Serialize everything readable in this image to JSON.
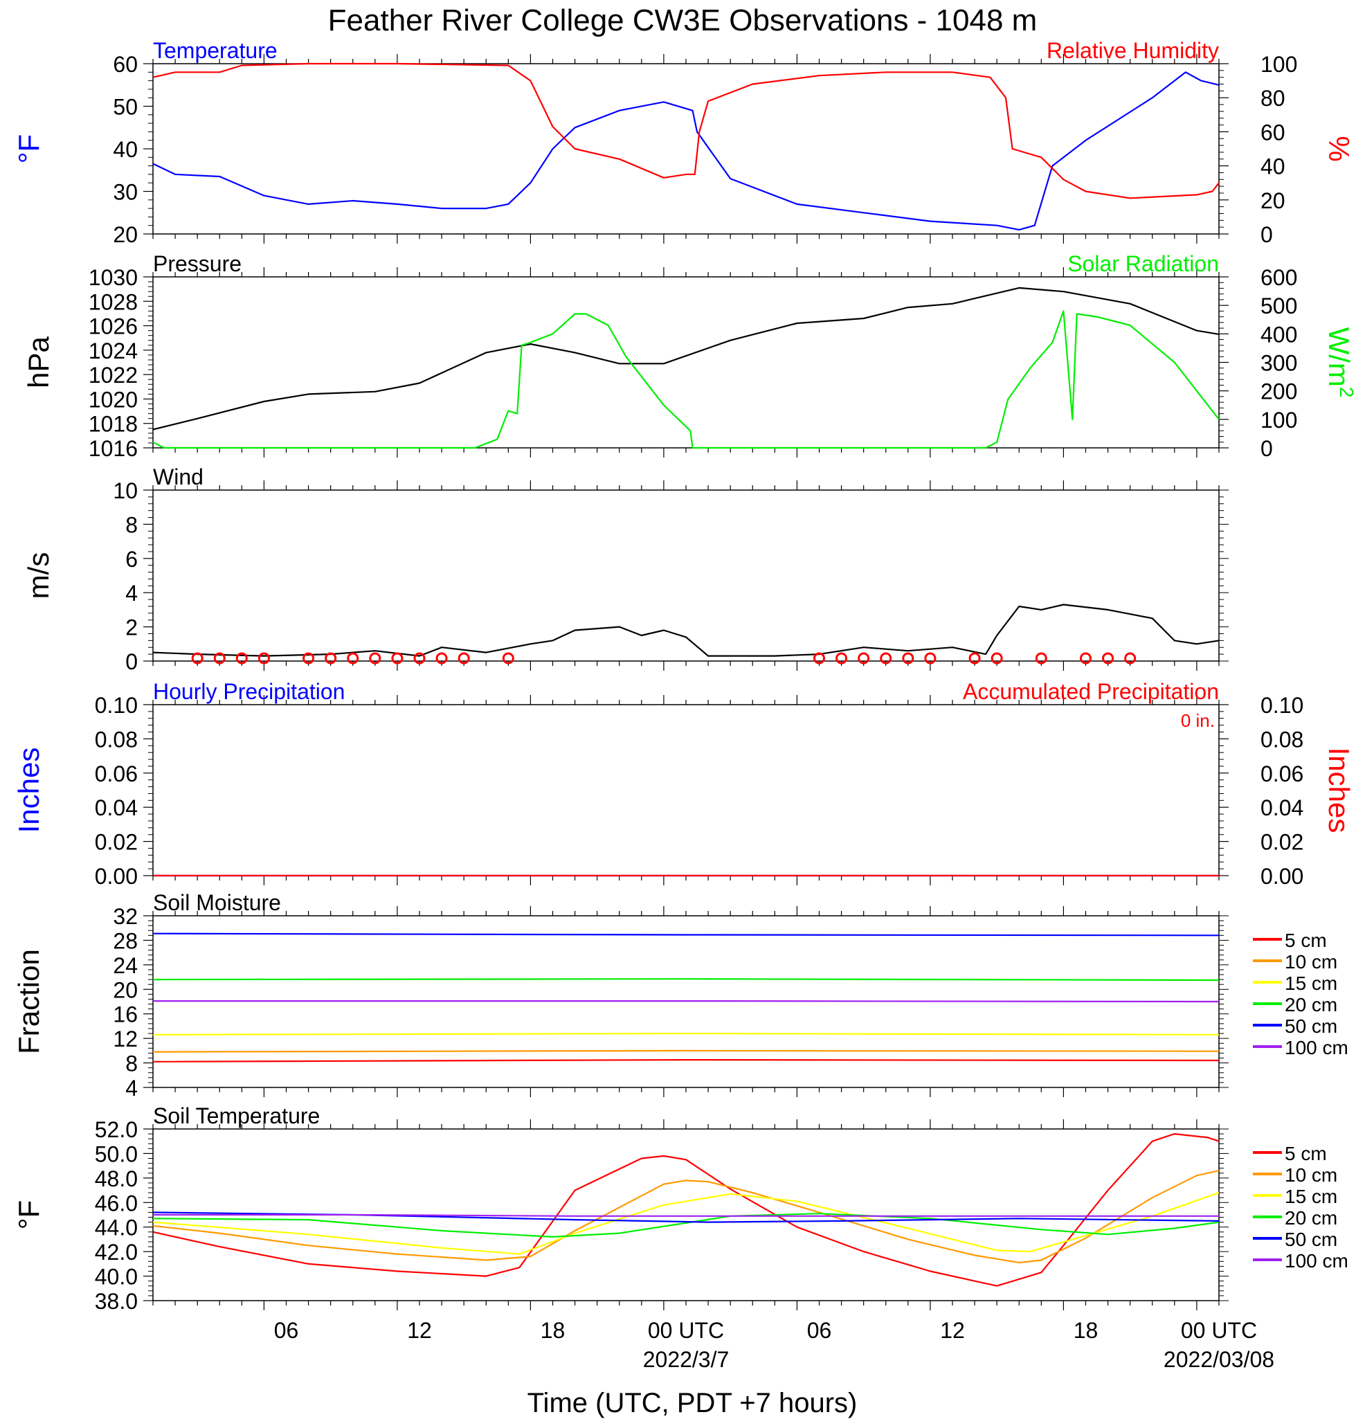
{
  "page": {
    "title": "Feather River College CW3E Observations - 1048 m",
    "xlabel": "Time (UTC, PDT +7 hours)",
    "time_ticks": [
      "06",
      "12",
      "18",
      "00 UTC",
      "06",
      "12",
      "18",
      "00 UTC"
    ],
    "date_labels": [
      "2022/3/7",
      "2022/03/08"
    ],
    "colors": {
      "blue": "#0000ff",
      "red": "#ff0000",
      "green": "#00ee00",
      "black": "#000000",
      "orange": "#ff9900",
      "yellow": "#ffff00",
      "purple": "#a020f0"
    }
  },
  "chart_data": [
    {
      "type": "line",
      "title": "Temperature / Relative Humidity",
      "left_label": "Temperature",
      "right_label": "Relative Humidity",
      "ylabel_left": "°F",
      "ylabel_right": "%",
      "ylim_left": [
        20,
        60
      ],
      "ylim_right": [
        0,
        100
      ],
      "yticks_left": [
        "20",
        "30",
        "40",
        "50",
        "60"
      ],
      "yticks_right": [
        "0",
        "20",
        "40",
        "60",
        "80",
        "100"
      ],
      "x_hours_range": [
        1,
        49
      ],
      "series": [
        {
          "name": "Temperature",
          "color": "#0000ff",
          "axis": "left",
          "x": [
            1,
            2,
            4,
            6,
            8,
            10,
            12,
            14,
            16,
            17,
            18,
            19,
            20,
            22,
            24,
            25.3,
            25.5,
            27,
            30,
            33,
            36,
            39,
            40,
            40.7,
            41.5,
            43,
            46,
            47.5,
            48.2,
            49
          ],
          "y": [
            36.5,
            34,
            33.5,
            29,
            27,
            27.8,
            27,
            26,
            26,
            27,
            32,
            40,
            45,
            49,
            51,
            49,
            44,
            33,
            27,
            25,
            23,
            22,
            21,
            22,
            36,
            42,
            52,
            58,
            56,
            55
          ]
        },
        {
          "name": "Relative Humidity",
          "color": "#ff0000",
          "axis": "right",
          "x": [
            1,
            2,
            4,
            5,
            8,
            12,
            17,
            18,
            19,
            20,
            22,
            24,
            25,
            25.4,
            25.6,
            26,
            28,
            31,
            34,
            37,
            38.7,
            39.4,
            39.7,
            41,
            42,
            43,
            45,
            48,
            48.7,
            49
          ],
          "y": [
            92,
            95,
            95,
            99,
            100,
            100,
            99,
            90,
            63,
            50,
            44,
            33,
            35,
            35,
            60,
            78,
            88,
            93,
            95,
            95,
            92,
            80,
            50,
            45,
            32,
            25,
            21,
            23,
            25,
            30
          ]
        }
      ]
    },
    {
      "type": "line",
      "title": "Pressure / Solar Radiation",
      "left_label": "Pressure",
      "right_label": "Solar Radiation",
      "ylabel_left": "hPa",
      "ylabel_right": "W/m",
      "ylabel_right_sup": "2",
      "ylim_left": [
        1016,
        1030
      ],
      "ylim_right": [
        0,
        600
      ],
      "yticks_left": [
        "1016",
        "1018",
        "1020",
        "1022",
        "1024",
        "1026",
        "1028",
        "1030"
      ],
      "yticks_right": [
        "0",
        "100",
        "200",
        "300",
        "400",
        "500",
        "600"
      ],
      "series": [
        {
          "name": "Pressure",
          "color": "#000000",
          "axis": "left",
          "x": [
            1,
            3,
            6,
            8,
            11,
            13,
            16,
            18,
            20,
            22,
            24,
            27,
            30,
            33,
            35,
            37,
            40,
            42,
            45,
            48,
            49
          ],
          "y": [
            1017.5,
            1018.4,
            1019.8,
            1020.4,
            1020.6,
            1021.3,
            1023.8,
            1024.5,
            1023.8,
            1022.9,
            1022.9,
            1024.8,
            1026.2,
            1026.6,
            1027.5,
            1027.8,
            1029.1,
            1028.8,
            1027.8,
            1025.6,
            1025.3
          ]
        },
        {
          "name": "Solar Radiation",
          "color": "#00ee00",
          "axis": "right",
          "x": [
            1,
            1.5,
            15.5,
            16.5,
            17,
            17.4,
            17.6,
            18,
            19,
            20,
            20.5,
            21.5,
            22.3,
            24,
            25.2,
            25.3,
            38.5,
            39,
            39.5,
            40.5,
            41.5,
            42,
            42.4,
            42.6,
            43.5,
            45,
            47,
            48.5,
            49
          ],
          "y": [
            20,
            0,
            0,
            30,
            130,
            120,
            360,
            370,
            400,
            470,
            470,
            430,
            320,
            150,
            60,
            0,
            0,
            20,
            170,
            280,
            370,
            480,
            100,
            470,
            460,
            430,
            300,
            150,
            100
          ]
        }
      ]
    },
    {
      "type": "line",
      "title": "Wind",
      "left_label": "Wind",
      "ylabel_left": "m/s",
      "ylim_left": [
        0,
        10
      ],
      "yticks_left": [
        "0",
        "2",
        "4",
        "6",
        "8",
        "10"
      ],
      "series": [
        {
          "name": "Wind",
          "color": "#000000",
          "axis": "left",
          "x": [
            1,
            3,
            6,
            9,
            11,
            13,
            14,
            16,
            18,
            19,
            20,
            22,
            23,
            24,
            25,
            26,
            27,
            29,
            31,
            33,
            35,
            37,
            38.5,
            39,
            40,
            41,
            42,
            44,
            46,
            47,
            48,
            49
          ],
          "y": [
            0.5,
            0.4,
            0.3,
            0.4,
            0.6,
            0.3,
            0.8,
            0.5,
            1.0,
            1.2,
            1.8,
            2.0,
            1.5,
            1.8,
            1.4,
            0.3,
            0.3,
            0.3,
            0.4,
            0.8,
            0.6,
            0.8,
            0.4,
            1.5,
            3.2,
            3.0,
            3.3,
            3.0,
            2.5,
            1.2,
            1.0,
            1.2
          ]
        }
      ],
      "calm_circle_hours": [
        3,
        4,
        5,
        6,
        8,
        9,
        10,
        11,
        12,
        13,
        14,
        15,
        17,
        31,
        32,
        33,
        34,
        35,
        36,
        38,
        39,
        41,
        43,
        44,
        45
      ]
    },
    {
      "type": "line",
      "title": "Hourly Precipitation / Accumulated Precipitation",
      "left_label": "Hourly Precipitation",
      "right_label": "Accumulated Precipitation",
      "accum_text": "0 in.",
      "ylabel_left": "Inches",
      "ylabel_right": "Inches",
      "ylim_left": [
        0,
        0.1
      ],
      "ylim_right": [
        0,
        0.1
      ],
      "yticks_left": [
        "0.00",
        "0.02",
        "0.04",
        "0.06",
        "0.08",
        "0.10"
      ],
      "yticks_right": [
        "0.00",
        "0.02",
        "0.04",
        "0.06",
        "0.08",
        "0.10"
      ],
      "series": [
        {
          "name": "Hourly Precipitation",
          "color": "#0000ff",
          "axis": "left",
          "x": [
            1,
            49
          ],
          "y": [
            0,
            0
          ]
        },
        {
          "name": "Accumulated Precipitation",
          "color": "#ff0000",
          "axis": "right",
          "x": [
            1,
            49
          ],
          "y": [
            0,
            0
          ]
        }
      ]
    },
    {
      "type": "line",
      "title": "Soil Moisture",
      "left_label": "Soil Moisture",
      "ylabel_left": "Fraction",
      "ylim_left": [
        4,
        32
      ],
      "yticks_left": [
        "4",
        "8",
        "12",
        "16",
        "20",
        "24",
        "28",
        "32"
      ],
      "legend": [
        "5 cm",
        "10 cm",
        "15 cm",
        "20 cm",
        "50 cm",
        "100 cm"
      ],
      "series": [
        {
          "name": "5 cm",
          "color": "#ff0000",
          "axis": "left",
          "x": [
            1,
            25,
            49
          ],
          "y": [
            8.2,
            8.5,
            8.4
          ]
        },
        {
          "name": "10 cm",
          "color": "#ff9900",
          "axis": "left",
          "x": [
            1,
            25,
            49
          ],
          "y": [
            9.8,
            10.0,
            9.9
          ]
        },
        {
          "name": "15 cm",
          "color": "#ffff00",
          "axis": "left",
          "x": [
            1,
            25,
            49
          ],
          "y": [
            12.6,
            12.8,
            12.6
          ]
        },
        {
          "name": "20 cm",
          "color": "#00ee00",
          "axis": "left",
          "x": [
            1,
            25,
            49
          ],
          "y": [
            21.6,
            21.7,
            21.5
          ]
        },
        {
          "name": "50 cm",
          "color": "#0000ff",
          "axis": "left",
          "x": [
            1,
            25,
            49
          ],
          "y": [
            29.1,
            28.9,
            28.8
          ]
        },
        {
          "name": "100 cm",
          "color": "#a020f0",
          "axis": "left",
          "x": [
            1,
            25,
            49
          ],
          "y": [
            18.1,
            18.1,
            18.0
          ]
        }
      ]
    },
    {
      "type": "line",
      "title": "Soil Temperature",
      "left_label": "Soil Temperature",
      "ylabel_left": "°F",
      "ylim_left": [
        38,
        52
      ],
      "yticks_left": [
        "38.0",
        "40.0",
        "42.0",
        "44.0",
        "46.0",
        "48.0",
        "50.0",
        "52.0"
      ],
      "legend": [
        "5 cm",
        "10 cm",
        "15 cm",
        "20 cm",
        "50 cm",
        "100 cm"
      ],
      "series": [
        {
          "name": "5 cm",
          "color": "#ff0000",
          "axis": "left",
          "x": [
            1,
            4,
            8,
            12,
            16,
            17.5,
            20,
            23,
            24,
            25,
            27,
            30,
            33,
            36,
            39,
            41,
            42,
            44,
            46,
            47,
            48.5,
            49
          ],
          "y": [
            43.6,
            42.4,
            41.0,
            40.4,
            40.0,
            40.7,
            47.0,
            49.6,
            49.8,
            49.5,
            47.1,
            44.0,
            42.0,
            40.4,
            39.2,
            40.3,
            42.5,
            47.0,
            51.0,
            51.6,
            51.3,
            51.0
          ]
        },
        {
          "name": "10 cm",
          "color": "#ff9900",
          "axis": "left",
          "x": [
            1,
            4,
            8,
            12,
            16,
            18,
            20,
            24,
            25,
            26,
            28,
            31,
            35,
            38,
            40,
            41,
            43,
            46,
            48,
            49
          ],
          "y": [
            44.1,
            43.5,
            42.5,
            41.8,
            41.3,
            41.6,
            43.7,
            47.5,
            47.8,
            47.7,
            46.8,
            45.2,
            43.0,
            41.7,
            41.1,
            41.3,
            43.1,
            46.4,
            48.2,
            48.6
          ]
        },
        {
          "name": "15 cm",
          "color": "#ffff00",
          "axis": "left",
          "x": [
            1,
            8,
            14,
            17.5,
            20,
            24,
            27,
            30,
            35,
            39,
            40.5,
            43,
            46,
            49
          ],
          "y": [
            44.4,
            43.4,
            42.3,
            41.8,
            43.5,
            45.8,
            46.7,
            46.1,
            43.9,
            42.1,
            42.0,
            43.3,
            44.9,
            46.8
          ]
        },
        {
          "name": "20 cm",
          "color": "#00ee00",
          "axis": "left",
          "x": [
            1,
            8,
            14,
            19,
            22,
            27,
            31,
            36,
            41,
            44,
            47,
            49
          ],
          "y": [
            44.7,
            44.6,
            43.7,
            43.2,
            43.5,
            44.9,
            45.1,
            44.7,
            43.8,
            43.4,
            43.9,
            44.4
          ]
        },
        {
          "name": "50 cm",
          "color": "#0000ff",
          "axis": "left",
          "x": [
            1,
            10,
            20,
            26,
            32,
            40,
            49
          ],
          "y": [
            45.2,
            45.0,
            44.6,
            44.4,
            44.5,
            44.7,
            44.5
          ]
        },
        {
          "name": "100 cm",
          "color": "#a020f0",
          "axis": "left",
          "x": [
            1,
            10,
            20,
            30,
            40,
            49
          ],
          "y": [
            45.0,
            45.0,
            44.9,
            44.9,
            44.9,
            44.9
          ]
        }
      ]
    }
  ]
}
